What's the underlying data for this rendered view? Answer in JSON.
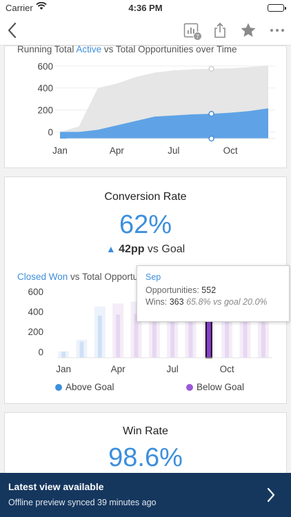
{
  "status_bar": {
    "carrier": "Carrier",
    "time": "4:36 PM"
  },
  "nav": {
    "badge_count": "7"
  },
  "running_total": {
    "title_parts": [
      "Running Total ",
      "Active",
      " vs ",
      "Total",
      " Opportunities over Time"
    ],
    "chart_data": {
      "type": "area",
      "y_ticks": [
        0,
        200,
        400,
        600
      ],
      "x_tick_labels": [
        "Jan",
        "Apr",
        "Jul",
        "Oct"
      ],
      "x": [
        "Jan",
        "Feb",
        "Mar",
        "Apr",
        "May",
        "Jun",
        "Jul",
        "Aug",
        "Sep",
        "Oct",
        "Nov",
        "Dec"
      ],
      "series": [
        {
          "name": "Total",
          "values": [
            0,
            50,
            400,
            440,
            500,
            540,
            560,
            570,
            575,
            580,
            590,
            605
          ]
        },
        {
          "name": "Active",
          "values": [
            0,
            0,
            20,
            60,
            100,
            140,
            150,
            160,
            165,
            175,
            190,
            215
          ]
        }
      ],
      "ylim": [
        -60,
        680
      ],
      "grid": true,
      "colors": {
        "total": "#e6e6e6",
        "active": "#5fa3e6"
      }
    }
  },
  "conversion": {
    "title": "Conversion Rate",
    "value": "62%",
    "delta": "42pp",
    "delta_suffix": " vs Goal",
    "colors": {
      "accent": "#3d8fdc"
    }
  },
  "closed_won": {
    "title_parts": [
      "Closed Won",
      " vs ",
      "Total",
      " Opportu"
    ],
    "chart_data": {
      "type": "bar",
      "y_ticks": [
        0,
        200,
        400,
        600
      ],
      "x_tick_labels": [
        "Jan",
        "Apr",
        "Jul",
        "Oct"
      ],
      "categories": [
        "Jan",
        "Feb",
        "Mar",
        "Apr",
        "May",
        "Jun",
        "Jul",
        "Aug",
        "Sep",
        "Oct",
        "Nov",
        "Dec"
      ],
      "series": [
        {
          "name": "Opportunities",
          "values": [
            5,
            120,
            450,
            480,
            500,
            520,
            530,
            540,
            552,
            560,
            565,
            570
          ]
        },
        {
          "name": "Wins",
          "values": [
            0,
            100,
            360,
            370,
            375,
            380,
            370,
            365,
            363,
            375,
            380,
            380
          ]
        }
      ],
      "above_goal": [
        true,
        true,
        true,
        false,
        false,
        false,
        false,
        false,
        false,
        false,
        false,
        false
      ],
      "selected": "Sep",
      "ylim": [
        -60,
        640
      ],
      "colors": {
        "above": "#3d8fdc",
        "below": "#9b59d6",
        "selected": "#8a3fd0"
      }
    },
    "legend": [
      {
        "label": "Above Goal",
        "color": "#3d8fdc"
      },
      {
        "label": "Below Goal",
        "color": "#9b59d6"
      }
    ],
    "tooltip": {
      "month": "Sep",
      "opp_label": "Opportunities: ",
      "opp_value": "552",
      "wins_label": "Wins: ",
      "wins_value": "363",
      "wins_note": "65.8% vs goal 20.0%"
    }
  },
  "win_rate": {
    "title": "Win Rate",
    "value": "98.6%"
  },
  "banner": {
    "title": "Latest view available",
    "subtitle": "Offline preview synced 39 minutes ago"
  }
}
